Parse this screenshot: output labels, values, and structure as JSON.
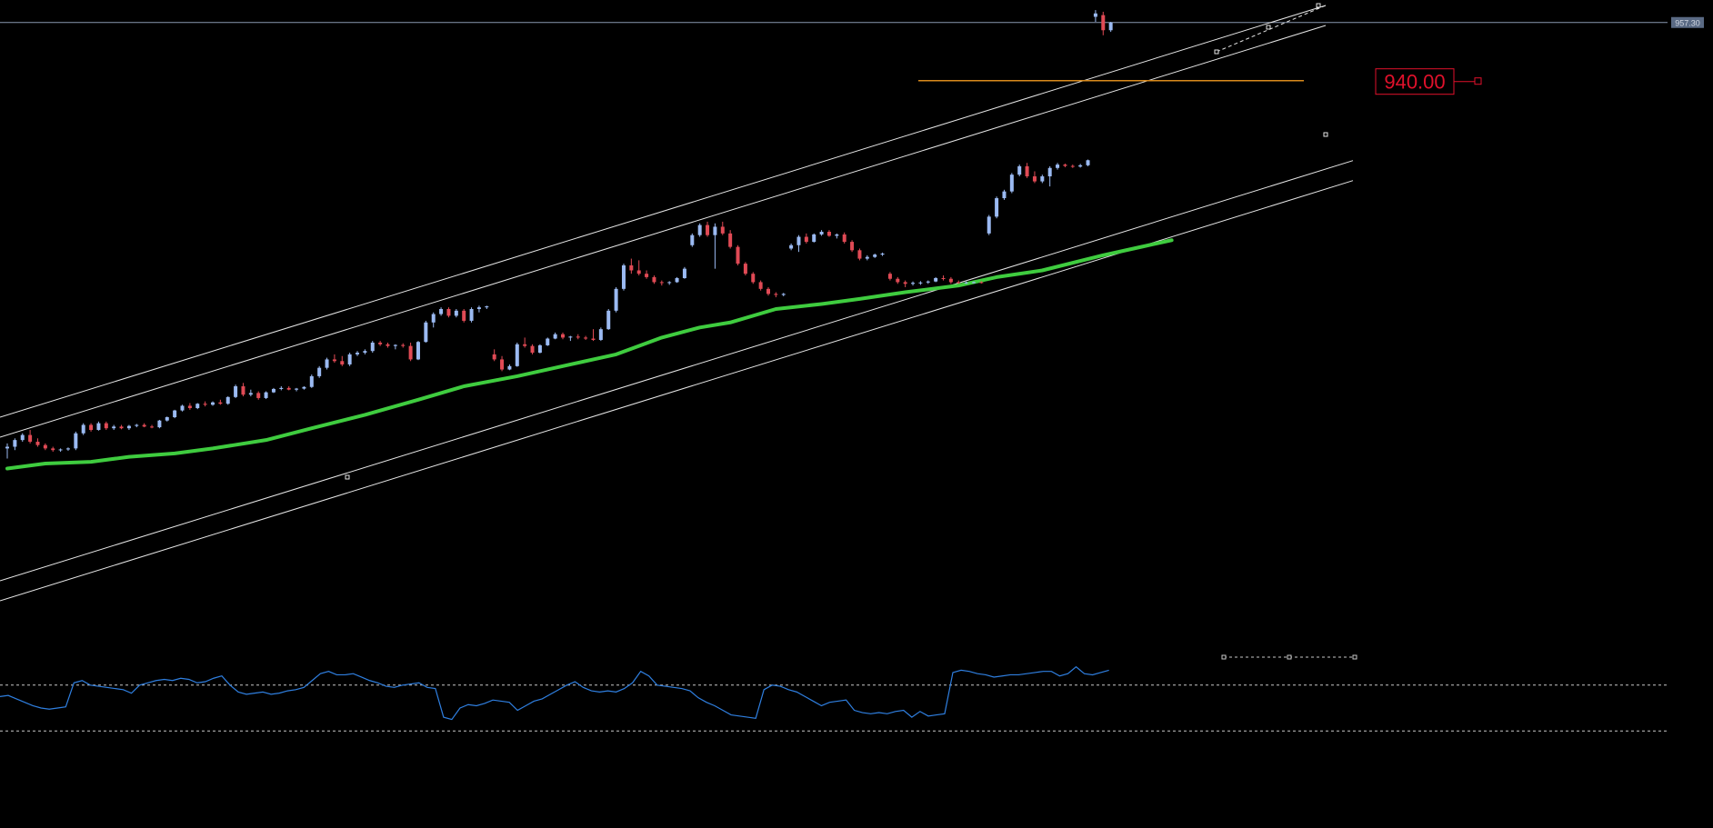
{
  "chart_data": {
    "type": "candlestick",
    "title": "",
    "xlabel": "",
    "ylabel": "",
    "ylim": [
      780,
      964
    ],
    "current_price_label": "957.30",
    "resistance_label": "940.00",
    "colors": {
      "background": "#000000",
      "bull": "#9bbaf2",
      "bear": "#e04a55",
      "moving_average": "#3fcc3f",
      "resistance": "#d98a1c",
      "channel": "#e6e6e6",
      "oscillator": "#2f7fe0",
      "level_box": "#e0112b"
    },
    "candles": [
      [
        830.5,
        832.0,
        827.5,
        831.0
      ],
      [
        831.0,
        833.5,
        830.0,
        833.0
      ],
      [
        833.0,
        835.0,
        832.5,
        834.5
      ],
      [
        834.5,
        836.0,
        832.0,
        832.5
      ],
      [
        832.5,
        833.5,
        831.0,
        831.5
      ],
      [
        831.5,
        832.0,
        830.0,
        830.5
      ],
      [
        830.5,
        831.0,
        829.5,
        830.0
      ],
      [
        830.0,
        830.5,
        829.5,
        830.2
      ],
      [
        830.2,
        830.8,
        829.8,
        830.5
      ],
      [
        830.5,
        835.5,
        830.0,
        835.0
      ],
      [
        835.0,
        838.0,
        834.5,
        837.5
      ],
      [
        837.5,
        838.0,
        835.5,
        836.0
      ],
      [
        836.0,
        838.5,
        835.8,
        838.0
      ],
      [
        838.0,
        838.5,
        836.0,
        836.5
      ],
      [
        836.5,
        837.5,
        836.0,
        837.0
      ],
      [
        837.0,
        837.5,
        836.2,
        836.5
      ],
      [
        836.5,
        837.5,
        836.0,
        837.2
      ],
      [
        837.2,
        837.8,
        836.8,
        837.5
      ],
      [
        837.5,
        838.0,
        836.8,
        837.0
      ],
      [
        837.0,
        837.5,
        836.5,
        836.8
      ],
      [
        836.8,
        839.0,
        836.5,
        838.8
      ],
      [
        838.8,
        840.0,
        838.5,
        839.8
      ],
      [
        839.8,
        842.0,
        839.5,
        841.8
      ],
      [
        841.8,
        843.5,
        841.5,
        843.2
      ],
      [
        843.2,
        844.0,
        842.0,
        842.5
      ],
      [
        842.5,
        844.0,
        842.2,
        843.8
      ],
      [
        843.8,
        844.5,
        843.0,
        843.5
      ],
      [
        843.5,
        844.5,
        843.2,
        844.2
      ],
      [
        844.2,
        845.0,
        843.5,
        843.8
      ],
      [
        843.8,
        846.0,
        843.5,
        845.8
      ],
      [
        845.8,
        849.5,
        845.5,
        849.0
      ],
      [
        849.0,
        850.0,
        846.0,
        846.5
      ],
      [
        846.5,
        848.0,
        846.0,
        847.0
      ],
      [
        847.0,
        847.5,
        845.0,
        845.5
      ],
      [
        845.5,
        847.5,
        845.2,
        847.2
      ],
      [
        847.2,
        848.5,
        847.0,
        848.2
      ],
      [
        848.2,
        849.0,
        847.8,
        848.5
      ],
      [
        848.5,
        849.0,
        847.8,
        848.0
      ],
      [
        848.0,
        848.5,
        847.5,
        848.3
      ],
      [
        848.3,
        849.0,
        848.0,
        848.8
      ],
      [
        848.8,
        852.5,
        848.5,
        852.0
      ],
      [
        852.0,
        855.0,
        851.5,
        854.5
      ],
      [
        854.5,
        857.5,
        854.0,
        857.0
      ],
      [
        857.0,
        858.5,
        856.0,
        856.5
      ],
      [
        856.5,
        858.0,
        855.0,
        855.5
      ],
      [
        855.5,
        859.0,
        855.0,
        858.5
      ],
      [
        858.5,
        859.5,
        858.0,
        859.0
      ],
      [
        859.0,
        860.0,
        858.5,
        859.5
      ],
      [
        859.5,
        862.5,
        859.0,
        862.0
      ],
      [
        862.0,
        862.5,
        861.0,
        861.5
      ],
      [
        861.5,
        862.0,
        860.5,
        861.0
      ],
      [
        861.0,
        861.5,
        860.0,
        861.3
      ],
      [
        861.3,
        861.8,
        860.5,
        861.0
      ],
      [
        861.0,
        862.0,
        856.5,
        857.0
      ],
      [
        857.0,
        862.5,
        856.8,
        862.2
      ],
      [
        862.2,
        868.5,
        862.0,
        868.0
      ],
      [
        868.0,
        871.0,
        866.5,
        870.5
      ],
      [
        870.5,
        872.5,
        870.0,
        872.0
      ],
      [
        872.0,
        872.5,
        869.5,
        870.0
      ],
      [
        870.0,
        872.0,
        869.5,
        871.5
      ],
      [
        871.5,
        872.0,
        868.0,
        868.5
      ],
      [
        868.5,
        872.5,
        868.0,
        872.0
      ],
      [
        872.0,
        873.0,
        871.0,
        872.5
      ],
      [
        872.5,
        873.0,
        872.0,
        872.8
      ],
      [
        858.5,
        860.0,
        856.5,
        857.0
      ],
      [
        857.0,
        858.0,
        853.5,
        854.0
      ],
      [
        854.0,
        855.5,
        853.8,
        855.0
      ],
      [
        855.0,
        862.0,
        854.8,
        861.5
      ],
      [
        861.5,
        863.5,
        860.5,
        861.0
      ],
      [
        861.0,
        861.5,
        858.5,
        859.0
      ],
      [
        859.0,
        861.5,
        858.8,
        861.2
      ],
      [
        861.2,
        863.5,
        861.0,
        863.2
      ],
      [
        863.2,
        865.0,
        863.0,
        864.5
      ],
      [
        864.5,
        865.0,
        863.0,
        863.5
      ],
      [
        863.5,
        864.0,
        862.5,
        863.8
      ],
      [
        863.8,
        864.5,
        863.0,
        863.5
      ],
      [
        863.5,
        864.0,
        862.8,
        863.2
      ],
      [
        863.2,
        866.0,
        862.5,
        862.8
      ],
      [
        862.8,
        866.5,
        862.5,
        866.0
      ],
      [
        866.0,
        872.0,
        865.8,
        871.5
      ],
      [
        871.5,
        878.5,
        871.0,
        878.0
      ],
      [
        878.0,
        885.5,
        877.5,
        885.0
      ],
      [
        885.0,
        887.0,
        882.5,
        883.5
      ],
      [
        883.5,
        886.5,
        882.0,
        882.5
      ],
      [
        882.5,
        883.5,
        881.0,
        881.5
      ],
      [
        881.5,
        882.0,
        879.5,
        880.0
      ],
      [
        880.0,
        880.5,
        879.0,
        879.8
      ],
      [
        879.8,
        880.3,
        879.2,
        880.0
      ],
      [
        880.0,
        881.5,
        879.8,
        881.2
      ],
      [
        881.2,
        884.5,
        881.0,
        884.0
      ],
      [
        891.0,
        894.5,
        890.5,
        894.0
      ],
      [
        894.0,
        897.5,
        893.5,
        897.0
      ],
      [
        897.0,
        898.0,
        893.5,
        894.0
      ],
      [
        894.0,
        897.5,
        884.0,
        896.5
      ],
      [
        896.5,
        898.0,
        894.0,
        894.5
      ],
      [
        894.5,
        895.5,
        890.0,
        890.5
      ],
      [
        890.5,
        891.0,
        885.0,
        885.5
      ],
      [
        885.5,
        886.0,
        882.0,
        882.5
      ],
      [
        882.5,
        883.0,
        879.5,
        880.0
      ],
      [
        880.0,
        880.5,
        877.5,
        878.0
      ],
      [
        878.0,
        878.5,
        876.0,
        876.5
      ],
      [
        876.5,
        877.0,
        875.5,
        876.2
      ],
      [
        876.2,
        876.8,
        875.8,
        876.5
      ],
      [
        890.0,
        891.5,
        889.5,
        891.0
      ],
      [
        891.0,
        894.0,
        889.0,
        893.5
      ],
      [
        893.5,
        894.5,
        891.5,
        892.0
      ],
      [
        892.0,
        894.5,
        891.8,
        894.2
      ],
      [
        894.2,
        895.5,
        893.8,
        895.0
      ],
      [
        895.0,
        895.5,
        893.5,
        893.8
      ],
      [
        893.8,
        894.5,
        893.0,
        894.2
      ],
      [
        894.2,
        894.8,
        891.5,
        892.0
      ],
      [
        892.0,
        892.5,
        889.0,
        889.5
      ],
      [
        889.5,
        890.0,
        886.5,
        887.0
      ],
      [
        887.0,
        888.0,
        886.5,
        887.5
      ],
      [
        887.5,
        888.5,
        887.2,
        888.2
      ],
      [
        888.2,
        888.8,
        887.8,
        888.5
      ],
      [
        882.5,
        883.0,
        880.5,
        881.0
      ],
      [
        881.0,
        881.5,
        879.5,
        880.0
      ],
      [
        880.0,
        880.5,
        878.5,
        879.5
      ],
      [
        879.5,
        880.2,
        879.0,
        879.8
      ],
      [
        879.8,
        880.3,
        879.2,
        879.9
      ],
      [
        879.9,
        880.5,
        879.5,
        880.2
      ],
      [
        880.2,
        881.5,
        880.0,
        881.2
      ],
      [
        881.2,
        882.0,
        880.5,
        881.0
      ],
      [
        881.0,
        881.5,
        879.5,
        880.0
      ],
      [
        880.0,
        880.5,
        879.5,
        879.8
      ],
      [
        879.8,
        880.2,
        879.5,
        879.9
      ],
      [
        879.9,
        880.2,
        879.6,
        880.0
      ],
      [
        880.0,
        880.3,
        879.6,
        879.8
      ],
      [
        894.5,
        900.0,
        894.0,
        899.5
      ],
      [
        899.5,
        905.5,
        899.0,
        905.0
      ],
      [
        905.0,
        907.5,
        904.5,
        907.0
      ],
      [
        907.0,
        912.5,
        906.5,
        912.0
      ],
      [
        912.0,
        915.0,
        911.5,
        914.5
      ],
      [
        914.5,
        915.5,
        911.0,
        911.5
      ],
      [
        911.5,
        913.0,
        909.5,
        910.0
      ],
      [
        910.0,
        912.0,
        909.5,
        911.5
      ],
      [
        911.5,
        914.5,
        908.5,
        914.0
      ],
      [
        914.0,
        915.5,
        913.5,
        915.0
      ],
      [
        915.0,
        915.3,
        914.2,
        914.6
      ],
      [
        914.6,
        915.0,
        914.0,
        914.4
      ],
      [
        914.4,
        915.2,
        914.1,
        914.8
      ],
      [
        914.8,
        916.5,
        914.5,
        916.3
      ],
      [
        959.0,
        961.0,
        957.5,
        960.0
      ],
      [
        959.5,
        960.5,
        953.5,
        955.0
      ],
      [
        955.0,
        957.5,
        954.5,
        957.3
      ]
    ],
    "moving_average": [
      [
        0,
        824.5
      ],
      [
        5,
        826.0
      ],
      [
        11,
        826.5
      ],
      [
        16,
        828.0
      ],
      [
        22,
        829.0
      ],
      [
        27,
        830.5
      ],
      [
        34,
        833.0
      ],
      [
        40,
        836.5
      ],
      [
        47,
        840.5
      ],
      [
        54,
        845.0
      ],
      [
        60,
        849.0
      ],
      [
        67,
        852.0
      ],
      [
        73,
        855.0
      ],
      [
        80,
        858.5
      ],
      [
        86,
        863.5
      ],
      [
        91,
        866.5
      ],
      [
        95,
        868.0
      ],
      [
        101,
        872.0
      ],
      [
        107,
        873.5
      ],
      [
        112,
        875.0
      ],
      [
        118,
        877.0
      ],
      [
        125,
        879.0
      ],
      [
        130,
        881.5
      ],
      [
        136,
        883.5
      ],
      [
        144,
        888.0
      ],
      [
        149,
        890.5
      ],
      [
        153,
        892.5
      ]
    ],
    "resistance_level": 940.0,
    "oscillator": {
      "ylim": [
        0,
        100
      ],
      "upper_level": 70,
      "lower_level": 30,
      "values": [
        60,
        61,
        58,
        55,
        52,
        50,
        49,
        50,
        51,
        72,
        74,
        70,
        69,
        68,
        67,
        66,
        63,
        70,
        72,
        74,
        75,
        74,
        76,
        75,
        72,
        73,
        76,
        78,
        70,
        64,
        62,
        63,
        64,
        62,
        63,
        65,
        66,
        68,
        74,
        80,
        82,
        79,
        79,
        80,
        77,
        74,
        72,
        69,
        68,
        70,
        71,
        72,
        68,
        67,
        42,
        40,
        50,
        53,
        52,
        54,
        57,
        56,
        55,
        48,
        52,
        56,
        58,
        62,
        66,
        70,
        73,
        68,
        65,
        64,
        65,
        64,
        67,
        72,
        82,
        78,
        70,
        69,
        68,
        67,
        65,
        59,
        55,
        52,
        48,
        44,
        43,
        42,
        41,
        66,
        70,
        69,
        66,
        64,
        60,
        56,
        52,
        55,
        56,
        57,
        48,
        46,
        45,
        46,
        45,
        47,
        48,
        42,
        47,
        43,
        44,
        45,
        81,
        83,
        82,
        80,
        79,
        77,
        78,
        79,
        79,
        80,
        81,
        82,
        82,
        78,
        80,
        86,
        80,
        79,
        81,
        83
      ]
    }
  }
}
